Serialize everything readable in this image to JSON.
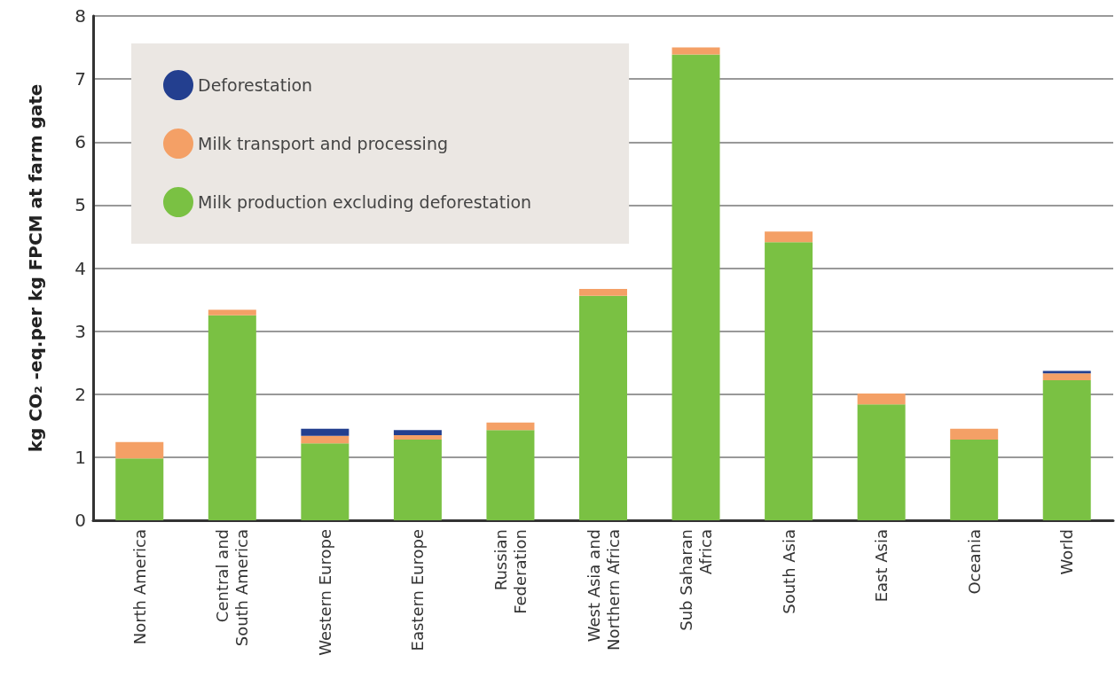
{
  "chart_data": {
    "type": "bar",
    "ylabel": "kg CO₂ -eq.per kg FPCM at farm gate",
    "categories": [
      "North America",
      "Central and\nSouth America",
      "Western Europe",
      "Eastern Europe",
      "Russian\nFederation",
      "West Asia and\nNorthern Africa",
      "Sub Saharan\nAfrica",
      "South Asia",
      "East Asia",
      "Oceania",
      "World"
    ],
    "stacked": true,
    "series": [
      {
        "name": "Milk production excluding deforestation",
        "color": "#7ac143",
        "values": [
          0.98,
          3.25,
          1.22,
          1.28,
          1.43,
          3.56,
          7.39,
          4.41,
          1.84,
          1.28,
          2.22
        ]
      },
      {
        "name": "Milk transport and processing",
        "color": "#f4a066",
        "values": [
          0.26,
          0.09,
          0.12,
          0.07,
          0.12,
          0.11,
          0.11,
          0.17,
          0.17,
          0.17,
          0.11
        ]
      },
      {
        "name": "Deforestation",
        "color": "#233f8f",
        "values": [
          null,
          null,
          0.11,
          0.08,
          null,
          null,
          null,
          null,
          null,
          null,
          0.04
        ]
      }
    ],
    "ylim": [
      0,
      8
    ],
    "yticks": [
      0,
      1,
      2,
      3,
      4,
      5,
      6,
      7,
      8
    ],
    "grid": "y",
    "legend": "top left"
  }
}
